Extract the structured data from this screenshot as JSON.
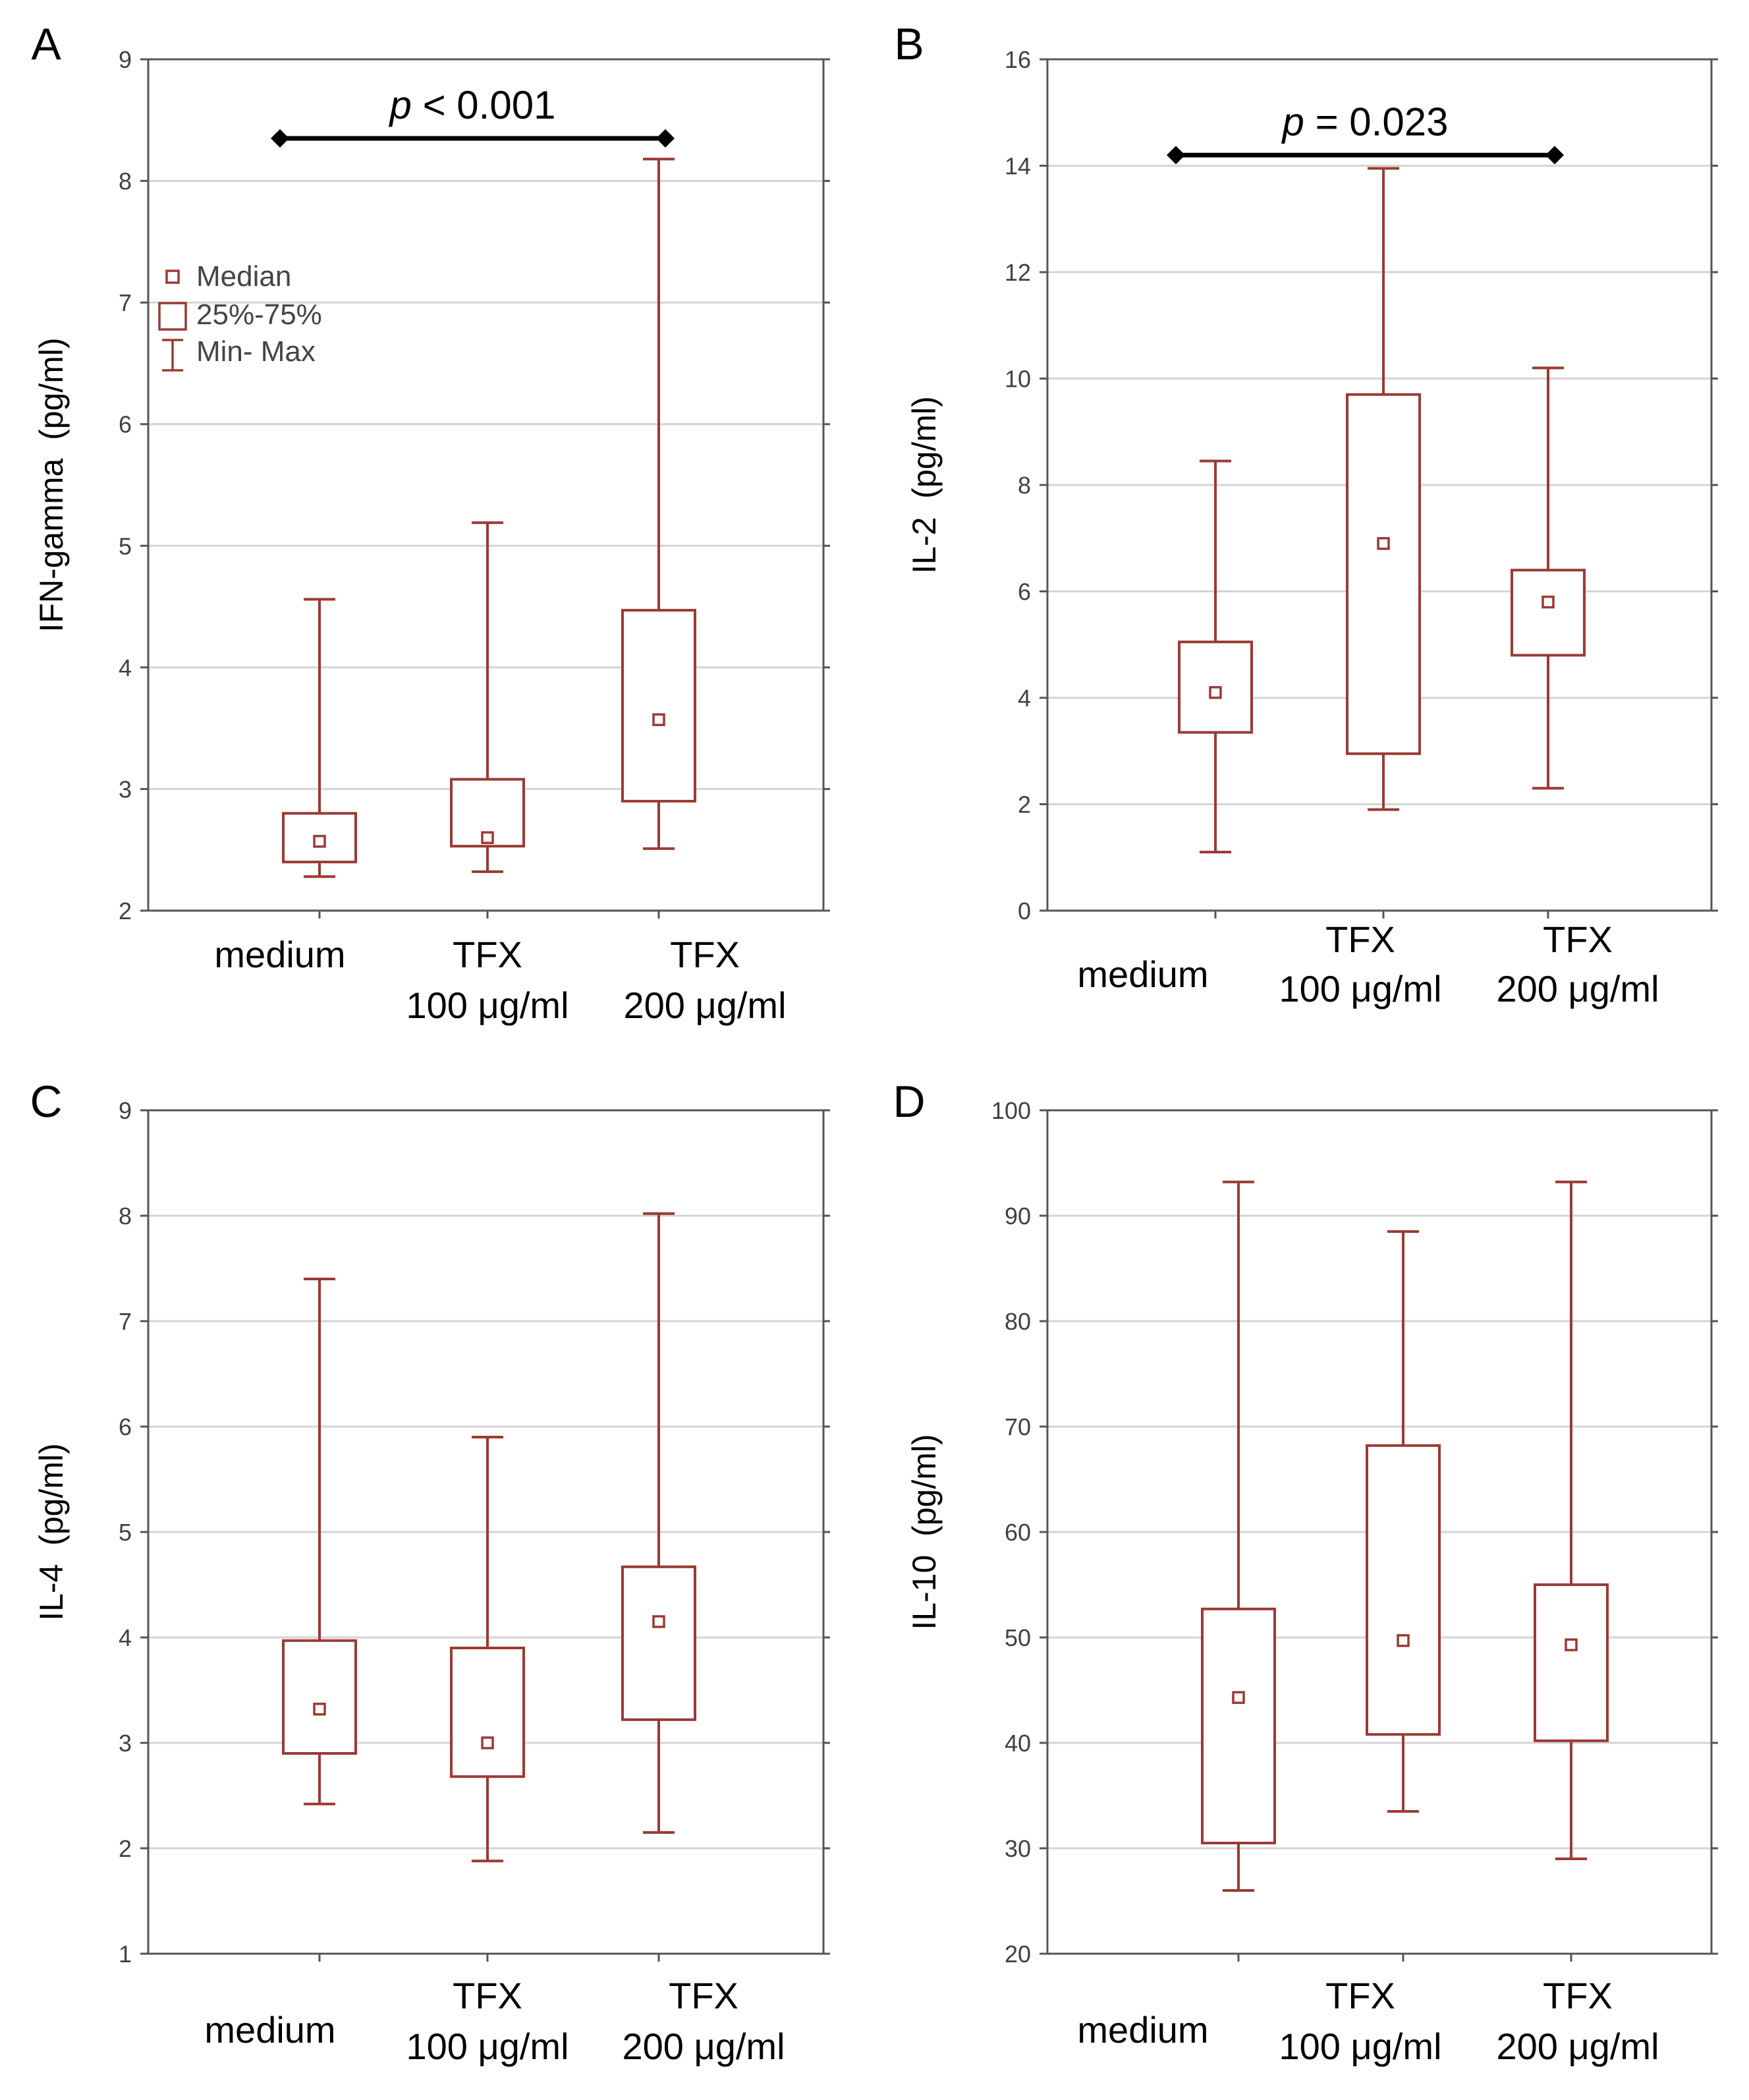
{
  "colors": {
    "box": "#9b3a34",
    "axis": "#555555",
    "grid": "#d4d4d4",
    "text": "#000000",
    "tick_text": "#404040"
  },
  "chart_data": [
    {
      "panel": "A",
      "type": "box",
      "ylabel": "IFN-gamma  (pg/ml)",
      "ylim": [
        2,
        9
      ],
      "yticks": [
        "2",
        "3",
        "4",
        "5",
        "6",
        "7",
        "8",
        "9"
      ],
      "categories": [
        [
          "medium"
        ],
        [
          "TFX",
          "100 μg/ml"
        ],
        [
          "TFX",
          "200 μg/ml"
        ]
      ],
      "min": [
        2.28,
        2.32,
        2.51
      ],
      "q1": [
        2.4,
        2.53,
        2.9
      ],
      "median": [
        2.57,
        2.6,
        3.57
      ],
      "q3": [
        2.8,
        3.08,
        4.47
      ],
      "max": [
        4.56,
        5.19,
        8.18
      ],
      "significance": {
        "prefix": "p",
        "text": " < 0.001",
        "from": 0,
        "to": 2,
        "y": 8.35
      },
      "legend": {
        "position": "top-left",
        "items": [
          "Median",
          "25%-75%",
          "Min- Max"
        ]
      }
    },
    {
      "panel": "B",
      "type": "box",
      "ylabel": "IL-2  (pg/ml)",
      "ylim": [
        0,
        16
      ],
      "yticks": [
        "0",
        "2",
        "4",
        "6",
        "8",
        "10",
        "12",
        "14",
        "16"
      ],
      "categories": [
        [
          "medium"
        ],
        [
          "TFX",
          "100 μg/ml"
        ],
        [
          "TFX",
          "200 μg/ml"
        ]
      ],
      "min": [
        1.1,
        1.9,
        2.3
      ],
      "q1": [
        3.35,
        2.95,
        4.8
      ],
      "median": [
        4.1,
        6.9,
        5.8
      ],
      "q3": [
        5.05,
        9.7,
        6.4
      ],
      "max": [
        8.45,
        13.95,
        10.2
      ],
      "significance": {
        "prefix": "p",
        "text": " = 0.023",
        "from": 0,
        "to": 2,
        "y": 14.2
      }
    },
    {
      "panel": "C",
      "type": "box",
      "ylabel": "IL-4  (pg/ml)",
      "ylim": [
        1,
        9
      ],
      "yticks": [
        "1",
        "2",
        "3",
        "4",
        "5",
        "6",
        "7",
        "8",
        "9"
      ],
      "categories": [
        [
          "medium"
        ],
        [
          "TFX",
          "100 μg/ml"
        ],
        [
          "TFX",
          "200 μg/ml"
        ]
      ],
      "min": [
        2.42,
        1.88,
        2.15
      ],
      "q1": [
        2.9,
        2.68,
        3.22
      ],
      "median": [
        3.32,
        3.0,
        4.15
      ],
      "q3": [
        3.97,
        3.9,
        4.67
      ],
      "max": [
        7.4,
        5.9,
        8.02
      ]
    },
    {
      "panel": "D",
      "type": "box",
      "ylabel": "IL-10  (pg/ml)",
      "ylim": [
        20,
        100
      ],
      "yticks": [
        "20",
        "30",
        "40",
        "50",
        "60",
        "70",
        "80",
        "90",
        "100"
      ],
      "categories": [
        [
          "medium"
        ],
        [
          "TFX",
          "100 μg/ml"
        ],
        [
          "TFX",
          "200 μg/ml"
        ]
      ],
      "min": [
        26,
        33.5,
        29
      ],
      "q1": [
        30.5,
        40.8,
        40.2
      ],
      "median": [
        44.3,
        49.7,
        49.3
      ],
      "q3": [
        52.7,
        68.2,
        55
      ],
      "max": [
        93.2,
        88.5,
        93.2
      ]
    }
  ]
}
